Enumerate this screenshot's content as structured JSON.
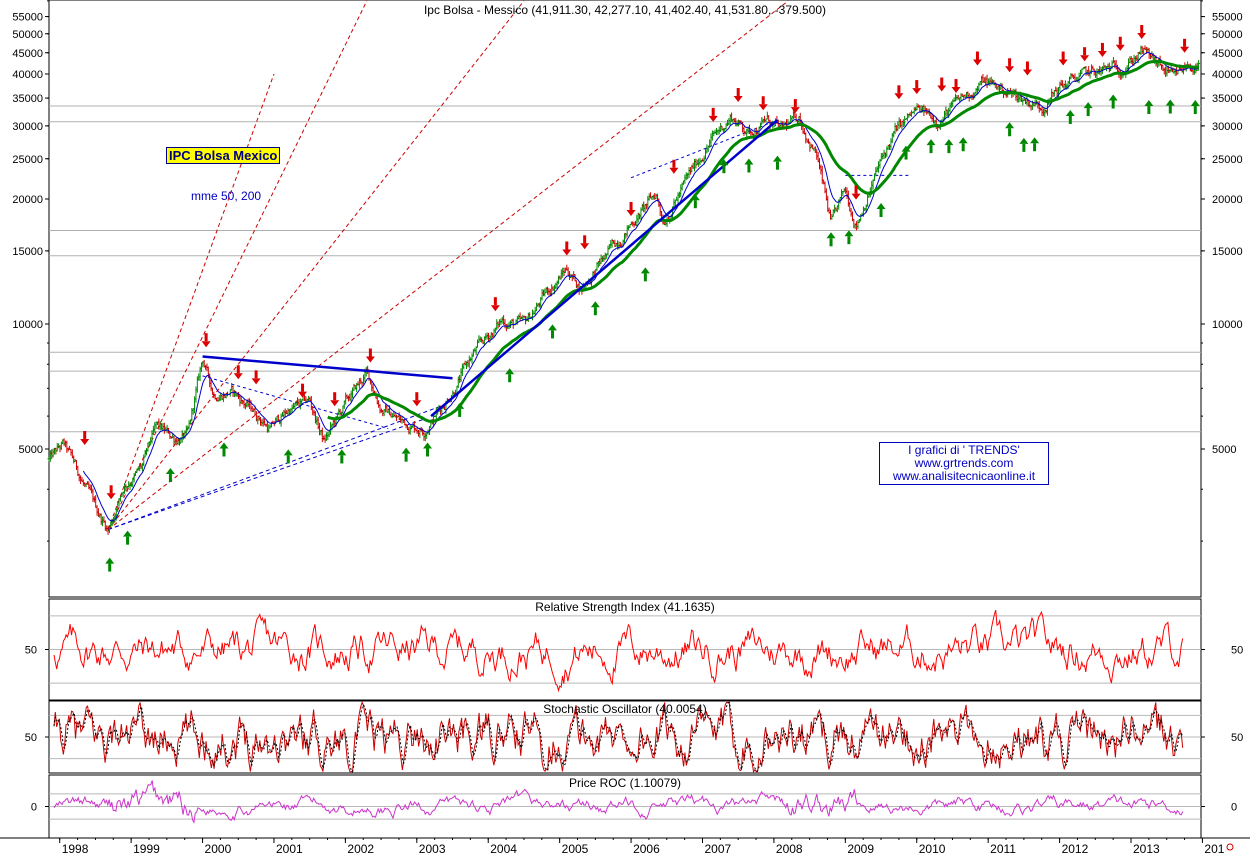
{
  "chart_data": [
    {
      "type": "candlestick",
      "title": "Ipc Bolsa - Messico (41,911.30, 42,277.10, 41,402.40, 41,531.80, -379.500)",
      "instrument_label": "IPC Bolsa Mexico",
      "indicator_label": "mme 50, 200",
      "y_scale": "log",
      "ylim": [
        3000,
        60000
      ],
      "y_ticks": [
        5000,
        10000,
        15000,
        20000,
        25000,
        30000,
        35000,
        40000,
        45000,
        50000,
        55000
      ],
      "x_ticks": [
        "1998",
        "1999",
        "2000",
        "2001",
        "2002",
        "2003",
        "2004",
        "2005",
        "2006",
        "2007",
        "2008",
        "2009",
        "2010",
        "2011",
        "2012",
        "2013",
        "201"
      ],
      "xlim": [
        1997.85,
        2013.98
      ],
      "price_path": [
        [
          1997.85,
          4700
        ],
        [
          1998.05,
          5100
        ],
        [
          1998.2,
          4600
        ],
        [
          1998.5,
          3600
        ],
        [
          1998.68,
          3200
        ],
        [
          1998.9,
          4100
        ],
        [
          1999.15,
          4500
        ],
        [
          1999.35,
          5600
        ],
        [
          1999.6,
          5300
        ],
        [
          1999.8,
          5400
        ],
        [
          2000.0,
          8200
        ],
        [
          2000.15,
          6800
        ],
        [
          2000.4,
          6900
        ],
        [
          2000.7,
          6200
        ],
        [
          2000.95,
          5600
        ],
        [
          2001.2,
          6200
        ],
        [
          2001.5,
          6500
        ],
        [
          2001.7,
          5200
        ],
        [
          2002.0,
          6400
        ],
        [
          2002.3,
          7600
        ],
        [
          2002.5,
          6300
        ],
        [
          2002.8,
          5800
        ],
        [
          2003.1,
          5600
        ],
        [
          2003.4,
          6500
        ],
        [
          2003.8,
          8500
        ],
        [
          2004.2,
          10200
        ],
        [
          2004.5,
          9900
        ],
        [
          2004.8,
          11800
        ],
        [
          2005.1,
          13600
        ],
        [
          2005.3,
          12200
        ],
        [
          2005.6,
          14200
        ],
        [
          2006.0,
          17500
        ],
        [
          2006.35,
          20500
        ],
        [
          2006.45,
          17800
        ],
        [
          2006.8,
          22500
        ],
        [
          2007.1,
          27500
        ],
        [
          2007.4,
          31600
        ],
        [
          2007.65,
          29000
        ],
        [
          2007.9,
          31000
        ],
        [
          2008.1,
          29000
        ],
        [
          2008.35,
          31500
        ],
        [
          2008.6,
          25500
        ],
        [
          2008.8,
          17200
        ],
        [
          2009.0,
          20800
        ],
        [
          2009.15,
          17500
        ],
        [
          2009.45,
          23500
        ],
        [
          2009.7,
          29000
        ],
        [
          2010.0,
          32500
        ],
        [
          2010.3,
          31200
        ],
        [
          2010.7,
          35500
        ],
        [
          2010.95,
          38500
        ],
        [
          2011.3,
          36000
        ],
        [
          2011.55,
          34500
        ],
        [
          2011.75,
          33500
        ],
        [
          2012.0,
          37200
        ],
        [
          2012.3,
          39500
        ],
        [
          2012.6,
          40500
        ],
        [
          2012.9,
          42000
        ],
        [
          2013.15,
          45500
        ],
        [
          2013.4,
          41500
        ],
        [
          2013.6,
          38500
        ],
        [
          2013.8,
          42000
        ],
        [
          2013.98,
          41531.8
        ]
      ],
      "series": [
        {
          "name": "mme 50",
          "color": "#0000cc"
        },
        {
          "name": "mme 200",
          "color": "#008800"
        }
      ],
      "colors": {
        "up": "#008800",
        "down": "#cc0000",
        "trendline": "#0000cc",
        "fan": "#cc0000"
      }
    },
    {
      "type": "line",
      "title": "Relative Strength Index (41.1635)",
      "ylim": [
        20,
        80
      ],
      "y_ticks": [
        50
      ],
      "color": "#ff0000"
    },
    {
      "type": "line",
      "title": "Stochastic Oscillator (40.0054)",
      "ylim": [
        0,
        100
      ],
      "y_ticks": [
        50
      ],
      "color": "#cc0000"
    },
    {
      "type": "line",
      "title": "Price ROC (1.10079)",
      "ylim": [
        -25,
        25
      ],
      "y_ticks": [
        0
      ],
      "color": "#cc33cc"
    }
  ],
  "annotations": {
    "trends_lines": [
      "I grafici di ' TRENDS'",
      "www.grtrends.com",
      "www.analisitecnicaonline.it"
    ]
  }
}
